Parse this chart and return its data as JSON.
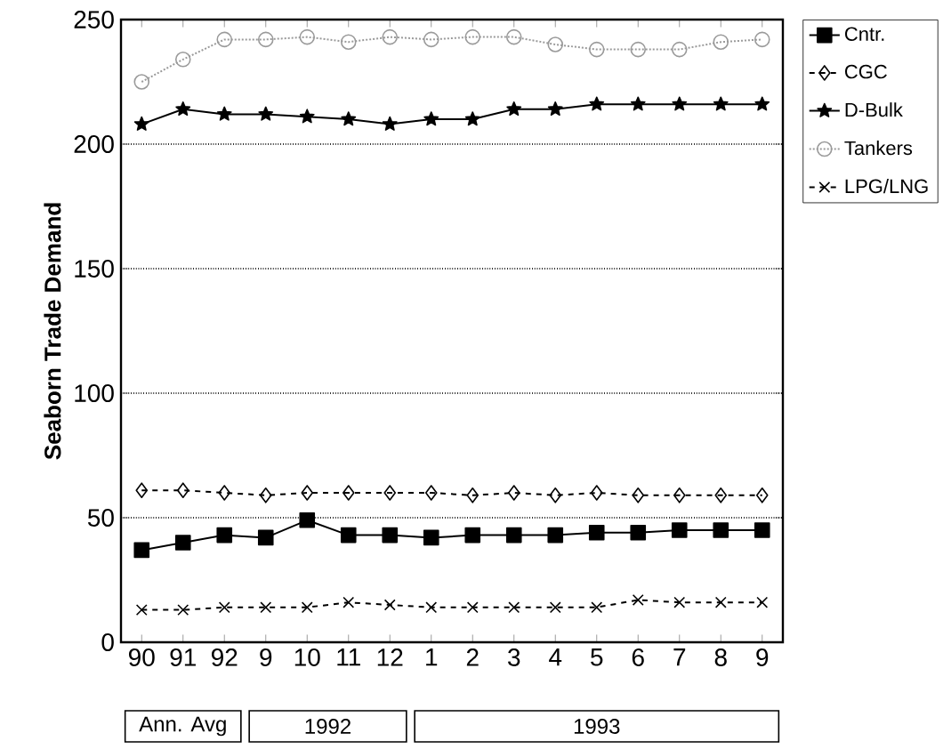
{
  "chart_data": {
    "type": "line",
    "ylabel": "Seaborn Trade Demand",
    "categories": [
      "90",
      "91",
      "92",
      "9",
      "10",
      "11",
      "12",
      "1",
      "2",
      "3",
      "4",
      "5",
      "6",
      "7",
      "8",
      "9"
    ],
    "series": [
      {
        "name": "Cntr.",
        "color": "#000000",
        "marker": "square",
        "line_style": "solid",
        "values": [
          37,
          40,
          43,
          42,
          49,
          43,
          43,
          42,
          43,
          43,
          43,
          44,
          44,
          45,
          45,
          45
        ]
      },
      {
        "name": "CGC",
        "color": "#000000",
        "marker": "diamond",
        "line_style": "dashed",
        "values": [
          61,
          61,
          60,
          59,
          60,
          60,
          60,
          60,
          59,
          60,
          59,
          60,
          59,
          59,
          59,
          59
        ]
      },
      {
        "name": "D-Bulk",
        "color": "#000000",
        "marker": "star",
        "line_style": "solid",
        "values": [
          208,
          214,
          212,
          212,
          211,
          210,
          208,
          210,
          210,
          214,
          214,
          216,
          216,
          216,
          216,
          216
        ]
      },
      {
        "name": "Tankers",
        "color": "#9a9a9a",
        "marker": "circle",
        "line_style": "dotted",
        "values": [
          225,
          234,
          242,
          242,
          243,
          241,
          243,
          242,
          243,
          243,
          240,
          238,
          238,
          238,
          241,
          242
        ]
      },
      {
        "name": "LPG/LNG",
        "color": "#000000",
        "marker": "cross",
        "line_style": "dashed",
        "values": [
          13,
          13,
          14,
          14,
          14,
          16,
          15,
          14,
          14,
          14,
          14,
          14,
          17,
          16,
          16,
          16
        ]
      }
    ],
    "ylim": [
      0,
      250
    ],
    "yticks": [
      0,
      50,
      100,
      150,
      200,
      250
    ],
    "grid": "y",
    "legend": "top right",
    "annotations": [
      "Ann. Avg",
      "1992",
      "1993"
    ]
  }
}
